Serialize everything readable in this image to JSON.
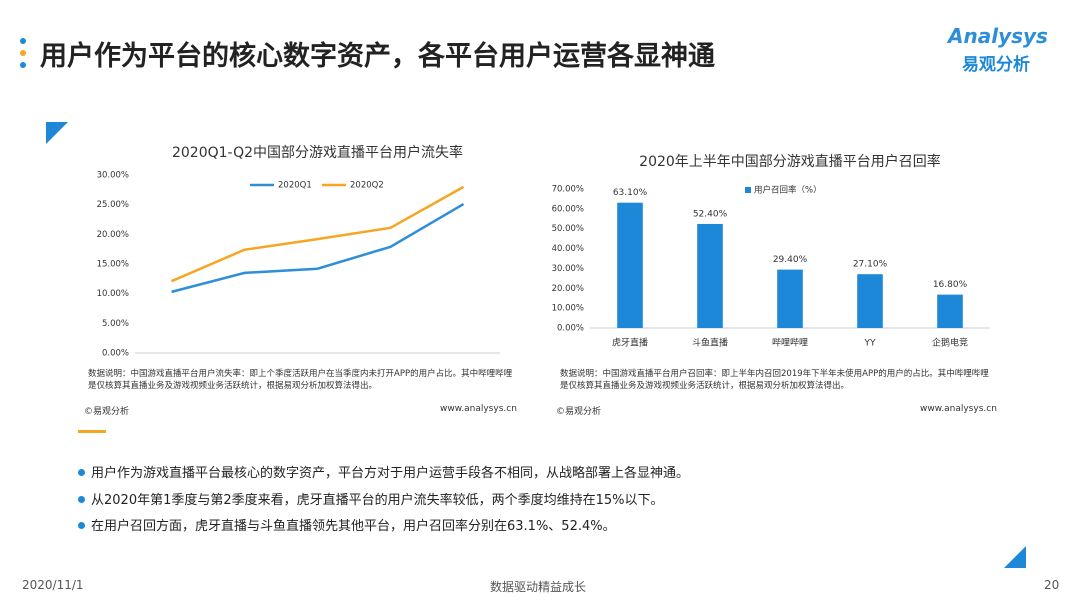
{
  "header": {
    "title": "用户作为平台的核心数字资产，各平台用户运营各显神通",
    "logo_en": "Analysys",
    "logo_cn": "易观分析"
  },
  "chart_data": [
    {
      "type": "line",
      "title": "2020Q1-Q2中国部分游戏直播平台用户流失率",
      "categories": [
        null,
        null,
        null,
        null,
        null
      ],
      "series": [
        {
          "name": "2020Q1",
          "color": "#2e8fd8",
          "values": [
            10.3,
            13.5,
            14.2,
            17.9,
            25.1
          ]
        },
        {
          "name": "2020Q2",
          "color": "#f5a623",
          "values": [
            12.1,
            17.4,
            19.2,
            21.1,
            28.0
          ]
        }
      ],
      "ylim": [
        0,
        30
      ],
      "yticks": [
        {
          "value": 0,
          "label": "0.00%"
        },
        {
          "value": 5,
          "label": "5.00%"
        },
        {
          "value": 10,
          "label": "10.00%"
        },
        {
          "value": 15,
          "label": "15.00%"
        },
        {
          "value": 20,
          "label": "20.00%"
        },
        {
          "value": 25,
          "label": "25.00%"
        },
        {
          "value": 30,
          "label": "30.00%"
        }
      ],
      "note": "数据说明：中国游戏直播平台用户流失率：即上个季度活跃用户在当季度内未打开APP的用户占比。其中哔哩哔哩是仅核算其直播业务及游戏视频业务活跃统计，根据易观分析加权算法得出。",
      "source": "©易观分析",
      "url": "www.analysys.cn"
    },
    {
      "type": "bar",
      "title": "2020年上半年中国部分游戏直播平台用户召回率",
      "categories": [
        "虎牙直播",
        "斗鱼直播",
        "哔哩哔哩",
        "YY",
        "企鹅电竞"
      ],
      "series": [
        {
          "name": "用户召回率（%）",
          "color": "#1e88d8",
          "values": [
            63.1,
            52.4,
            29.4,
            27.1,
            16.8
          ],
          "value_labels": [
            "63.10%",
            "52.40%",
            "29.40%",
            "27.10%",
            "16.80%"
          ]
        }
      ],
      "ylim": [
        0,
        70
      ],
      "yticks": [
        {
          "value": 0,
          "label": "0.00%"
        },
        {
          "value": 10,
          "label": "10.00%"
        },
        {
          "value": 20,
          "label": "20.00%"
        },
        {
          "value": 30,
          "label": "30.00%"
        },
        {
          "value": 40,
          "label": "40.00%"
        },
        {
          "value": 50,
          "label": "50.00%"
        },
        {
          "value": 60,
          "label": "60.00%"
        },
        {
          "value": 70,
          "label": "70.00%"
        }
      ],
      "note": "数据说明：中国游戏直播平台用户召回率：即上半年内召回2019年下半年未使用APP的用户的占比。其中哔哩哔哩是仅核算其直播业务及游戏视频业务活跃统计，根据易观分析加权算法得出。",
      "source": "©易观分析",
      "url": "www.analysys.cn"
    }
  ],
  "bullets": [
    "用户作为游戏直播平台最核心的数字资产，平台方对于用户运营手段各不相同，从战略部署上各显神通。",
    "从2020年第1季度与第2季度来看，虎牙直播平台的用户流失率较低，两个季度均维持在15%以下。",
    "在用户召回方面，虎牙直播与斗鱼直播领先其他平台，用户召回率分别在63.1%、52.4%。"
  ],
  "footer": {
    "date": "2020/11/1",
    "slogan": "数据驱动精益成长",
    "page": "20"
  }
}
